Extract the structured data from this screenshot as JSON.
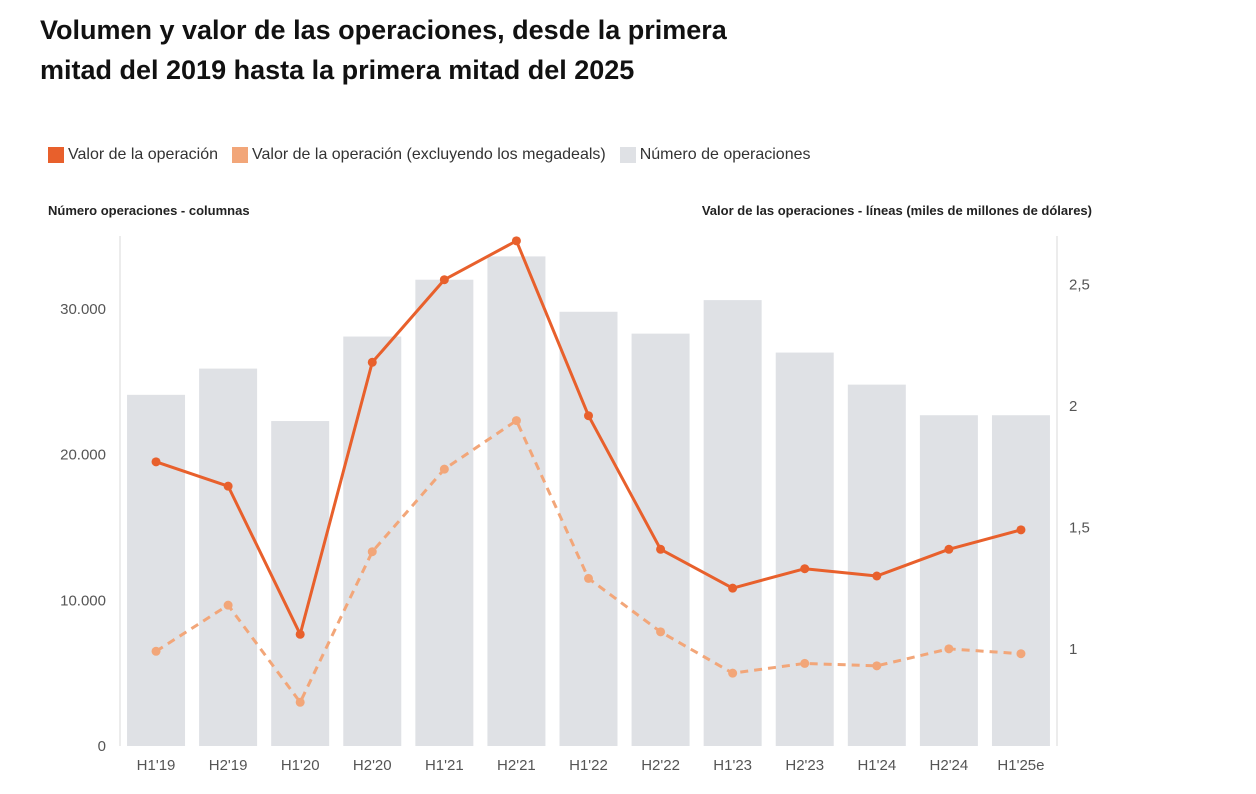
{
  "chart_data": {
    "type": "bar+line",
    "title_lines": [
      "Volumen y valor de las operaciones, desde la primera",
      "mitad del 2019 hasta la  primera mitad del 2025"
    ],
    "legend": [
      {
        "label": "Valor de la operación",
        "color": "#e8602c"
      },
      {
        "label": "Valor de la operación (excluyendo los megadeals)",
        "color": "#f2a679"
      },
      {
        "label": "Número de operaciones",
        "color": "#dfe1e5"
      }
    ],
    "ylabel_left": "Número operaciones - columnas",
    "ylabel_right": "Valor de las operaciones - líneas (miles de millones de dólares)",
    "categories": [
      "H1'19",
      "H2'19",
      "H1'20",
      "H2'20",
      "H1'21",
      "H2'21",
      "H1'22",
      "H2'22",
      "H1'23",
      "H2'23",
      "H1'24",
      "H2'24",
      "H1'25e"
    ],
    "ylim_left": [
      0,
      35000
    ],
    "yticks_left": [
      0,
      10000,
      20000,
      30000
    ],
    "ytick_labels_left": [
      "0",
      "10.000",
      "20.000",
      "30.000"
    ],
    "ylim_right": [
      0.6,
      2.7
    ],
    "yticks_right": [
      1,
      1.5,
      2,
      2.5
    ],
    "ytick_labels_right": [
      "1",
      "1,5",
      "2",
      "2,5"
    ],
    "series": [
      {
        "name": "Número de operaciones",
        "type": "bar",
        "axis": "left",
        "color": "#dfe1e5",
        "values": [
          24100,
          25900,
          22300,
          28100,
          32000,
          33600,
          29800,
          28300,
          30600,
          27000,
          24800,
          22700,
          22700
        ]
      },
      {
        "name": "Valor de la operación",
        "type": "line",
        "axis": "right",
        "color": "#e8602c",
        "values": [
          1.77,
          1.67,
          1.06,
          2.18,
          2.52,
          2.68,
          1.96,
          1.41,
          1.25,
          1.33,
          1.3,
          1.41,
          1.49
        ]
      },
      {
        "name": "Valor de la operación (excluyendo los megadeals)",
        "type": "line",
        "axis": "right",
        "color": "#f2a679",
        "dashed": true,
        "values": [
          0.99,
          1.18,
          0.78,
          1.4,
          1.74,
          1.94,
          1.29,
          1.07,
          0.9,
          0.94,
          0.93,
          1.0,
          0.98
        ]
      }
    ]
  }
}
